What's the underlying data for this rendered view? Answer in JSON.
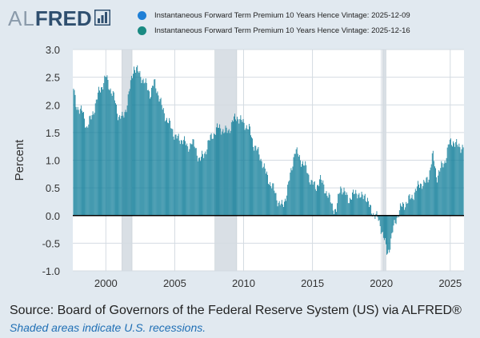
{
  "logo": {
    "part1": "AL",
    "part2": "FRED",
    "icon": "chart-bar-icon"
  },
  "legend": [
    {
      "label": "Instantaneous Forward Term Premium 10 Years Hence Vintage: 2025-12-09",
      "color": "#1f7fd6"
    },
    {
      "label": "Instantaneous Forward Term Premium 10 Years Hence Vintage: 2025-12-16",
      "color": "#1a8a82"
    }
  ],
  "footer": {
    "source": "Source: Board of Governors of the Federal Reserve System (US) via ALFRED®",
    "note": "Shaded areas indicate U.S. recessions."
  },
  "colors": {
    "background": "#e1e9f0",
    "plot_bg": "#ffffff",
    "bars": "#17819c",
    "recession": "#d9dfe5"
  },
  "chart_data": {
    "type": "bar",
    "ylabel": "Percent",
    "xlabel": "",
    "ylim": [
      -1.0,
      3.0
    ],
    "yticks": [
      "3.0",
      "2.5",
      "2.0",
      "1.5",
      "1.0",
      "0.5",
      "0.0",
      "-0.5",
      "-1.0"
    ],
    "xticks": [
      "2000",
      "2005",
      "2010",
      "2015",
      "2020",
      "2025"
    ],
    "xlim": [
      1997.6,
      2026.0
    ],
    "grid": true,
    "recessions": [
      [
        2001.17,
        2001.9
      ],
      [
        2007.92,
        2009.5
      ],
      [
        2020.1,
        2020.33
      ]
    ],
    "series": [
      {
        "name": "Vintage: 2025-12-16",
        "points": [
          [
            1997.6,
            2.35
          ],
          [
            1997.8,
            2.0
          ],
          [
            1998.0,
            1.95
          ],
          [
            1998.3,
            1.85
          ],
          [
            1998.6,
            1.6
          ],
          [
            1998.9,
            1.75
          ],
          [
            1999.2,
            2.0
          ],
          [
            1999.5,
            2.25
          ],
          [
            1999.8,
            2.4
          ],
          [
            2000.0,
            2.5
          ],
          [
            2000.3,
            2.3
          ],
          [
            2000.6,
            2.1
          ],
          [
            2000.9,
            1.8
          ],
          [
            2001.2,
            1.75
          ],
          [
            2001.5,
            2.0
          ],
          [
            2001.8,
            2.4
          ],
          [
            2002.0,
            2.7
          ],
          [
            2002.3,
            2.6
          ],
          [
            2002.6,
            2.5
          ],
          [
            2002.9,
            2.35
          ],
          [
            2003.2,
            2.2
          ],
          [
            2003.5,
            2.4
          ],
          [
            2003.8,
            2.2
          ],
          [
            2004.1,
            1.9
          ],
          [
            2004.4,
            1.75
          ],
          [
            2004.7,
            1.6
          ],
          [
            2005.0,
            1.45
          ],
          [
            2005.3,
            1.35
          ],
          [
            2005.6,
            1.4
          ],
          [
            2005.9,
            1.2
          ],
          [
            2006.2,
            1.35
          ],
          [
            2006.5,
            1.2
          ],
          [
            2006.8,
            1.0
          ],
          [
            2007.1,
            1.1
          ],
          [
            2007.4,
            1.3
          ],
          [
            2007.7,
            1.45
          ],
          [
            2008.0,
            1.55
          ],
          [
            2008.3,
            1.6
          ],
          [
            2008.6,
            1.5
          ],
          [
            2008.9,
            1.55
          ],
          [
            2009.2,
            1.7
          ],
          [
            2009.5,
            1.8
          ],
          [
            2009.8,
            1.7
          ],
          [
            2010.1,
            1.65
          ],
          [
            2010.4,
            1.55
          ],
          [
            2010.7,
            1.3
          ],
          [
            2011.0,
            1.15
          ],
          [
            2011.3,
            1.0
          ],
          [
            2011.6,
            0.75
          ],
          [
            2011.9,
            0.6
          ],
          [
            2012.2,
            0.45
          ],
          [
            2012.5,
            0.25
          ],
          [
            2012.8,
            0.15
          ],
          [
            2013.1,
            0.4
          ],
          [
            2013.4,
            0.75
          ],
          [
            2013.7,
            1.2
          ],
          [
            2014.0,
            1.05
          ],
          [
            2014.3,
            0.95
          ],
          [
            2014.6,
            0.8
          ],
          [
            2014.9,
            0.6
          ],
          [
            2015.2,
            0.5
          ],
          [
            2015.5,
            0.65
          ],
          [
            2015.8,
            0.55
          ],
          [
            2016.1,
            0.35
          ],
          [
            2016.4,
            0.2
          ],
          [
            2016.7,
            0.05
          ],
          [
            2017.0,
            0.55
          ],
          [
            2017.3,
            0.4
          ],
          [
            2017.6,
            0.3
          ],
          [
            2017.9,
            0.35
          ],
          [
            2018.2,
            0.45
          ],
          [
            2018.5,
            0.3
          ],
          [
            2018.8,
            0.4
          ],
          [
            2019.1,
            0.15
          ],
          [
            2019.4,
            0.05
          ],
          [
            2019.7,
            -0.05
          ],
          [
            2020.0,
            -0.25
          ],
          [
            2020.2,
            -0.45
          ],
          [
            2020.4,
            -0.7
          ],
          [
            2020.6,
            -0.55
          ],
          [
            2020.8,
            -0.3
          ],
          [
            2021.0,
            -0.1
          ],
          [
            2021.3,
            0.1
          ],
          [
            2021.6,
            0.2
          ],
          [
            2021.9,
            0.25
          ],
          [
            2022.2,
            0.35
          ],
          [
            2022.5,
            0.45
          ],
          [
            2022.8,
            0.6
          ],
          [
            2023.1,
            0.55
          ],
          [
            2023.4,
            0.7
          ],
          [
            2023.7,
            1.1
          ],
          [
            2024.0,
            0.7
          ],
          [
            2024.3,
            0.85
          ],
          [
            2024.6,
            1.0
          ],
          [
            2024.9,
            1.3
          ],
          [
            2025.2,
            1.35
          ],
          [
            2025.5,
            1.25
          ],
          [
            2025.8,
            1.25
          ]
        ]
      }
    ]
  }
}
